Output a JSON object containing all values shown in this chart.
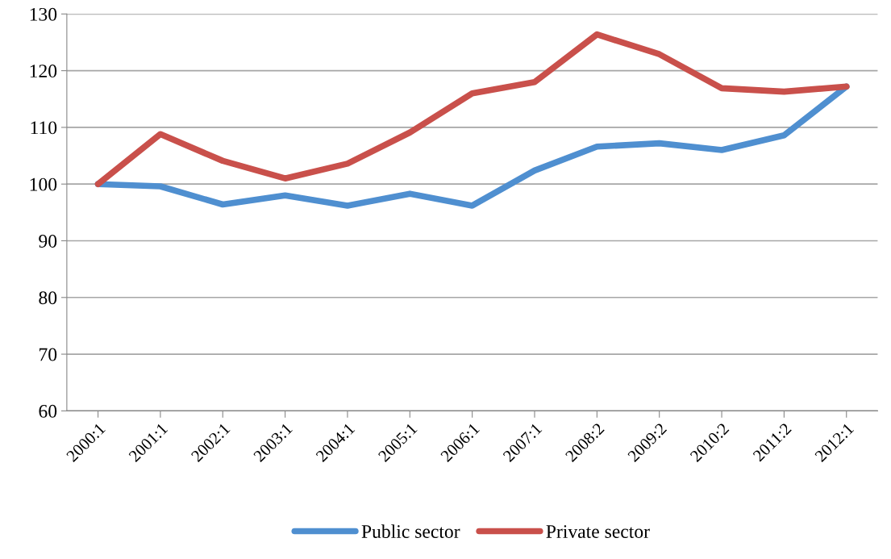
{
  "chart_data": {
    "type": "line",
    "categories": [
      "2000:1",
      "2001:1",
      "2002:1",
      "2003:1",
      "2004:1",
      "2005:1",
      "2006:1",
      "2007:1",
      "2008:2",
      "2009:2",
      "2010:2",
      "2011:2",
      "2012:1"
    ],
    "series": [
      {
        "name": "Public sector",
        "color": "#4f8fd0",
        "values": [
          100,
          99.6,
          96.4,
          98,
          96.2,
          98.3,
          96.2,
          102.4,
          106.6,
          107.2,
          106,
          108.6,
          117.2
        ]
      },
      {
        "name": "Private sector",
        "color": "#c9504b",
        "values": [
          100,
          108.8,
          104.1,
          101,
          103.6,
          109.1,
          116,
          118,
          126.4,
          122.9,
          116.9,
          116.3,
          117.2
        ]
      }
    ],
    "ylim": [
      60,
      130
    ],
    "yticks": [
      60,
      70,
      80,
      90,
      100,
      110,
      120,
      130
    ],
    "grid": "y",
    "legend": "bottom",
    "marker": "none",
    "line_style": "solid"
  }
}
